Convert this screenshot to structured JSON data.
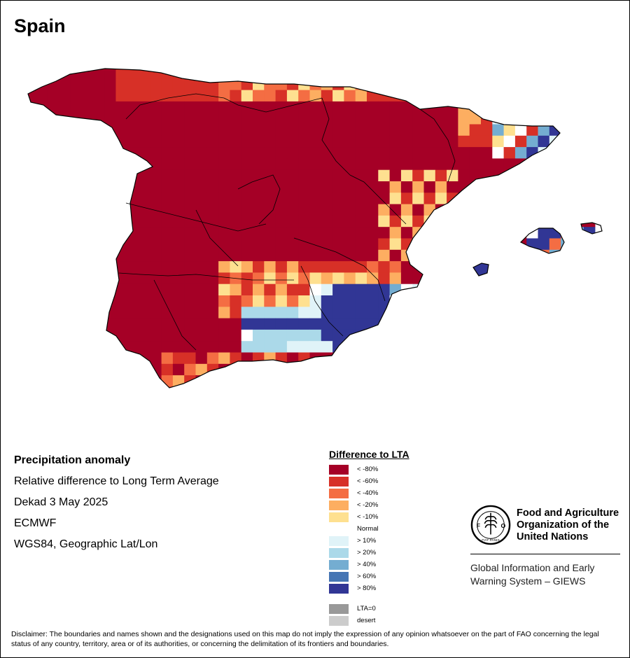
{
  "title": "Spain",
  "info": {
    "heading": "Precipitation anomaly",
    "description": "Relative difference to Long Term Average",
    "period": "Dekad 3 May 2025",
    "source": "ECMWF",
    "projection": "WGS84, Geographic Lat/Lon"
  },
  "legend": {
    "title": "Difference to LTA",
    "dry": [
      {
        "label": "< -80%",
        "color": "#a50026"
      },
      {
        "label": "< -60%",
        "color": "#d73027"
      },
      {
        "label": "< -40%",
        "color": "#f46d43"
      },
      {
        "label": "< -20%",
        "color": "#fdae61"
      },
      {
        "label": "< -10%",
        "color": "#fee090"
      }
    ],
    "normal_label": "Normal",
    "wet": [
      {
        "label": "> 10%",
        "color": "#e0f3f8"
      },
      {
        "label": "> 20%",
        "color": "#abd9e9"
      },
      {
        "label": "> 40%",
        "color": "#74add1"
      },
      {
        "label": "> 60%",
        "color": "#4575b4"
      },
      {
        "label": "> 80%",
        "color": "#313695"
      }
    ],
    "special": [
      {
        "label": "LTA=0",
        "color": "#999999"
      },
      {
        "label": "desert",
        "color": "#cccccc"
      }
    ]
  },
  "organization": {
    "name_lines": [
      "Food and Agriculture",
      "Organization of the",
      "United Nations"
    ],
    "logo_text": "FAO",
    "logo_motto": "FIAT PANIS",
    "system_lines": [
      "Global Information and Early",
      "Warning System – GIEWS"
    ]
  },
  "disclaimer": "Disclaimer: The boundaries and names shown and the designations used on this map do not imply the expression of any opinion whatsoever on the part of FAO concerning the legal status of any country, territory, area or of its authorities, or concerning the delimitation of its frontiers and boundaries."
}
